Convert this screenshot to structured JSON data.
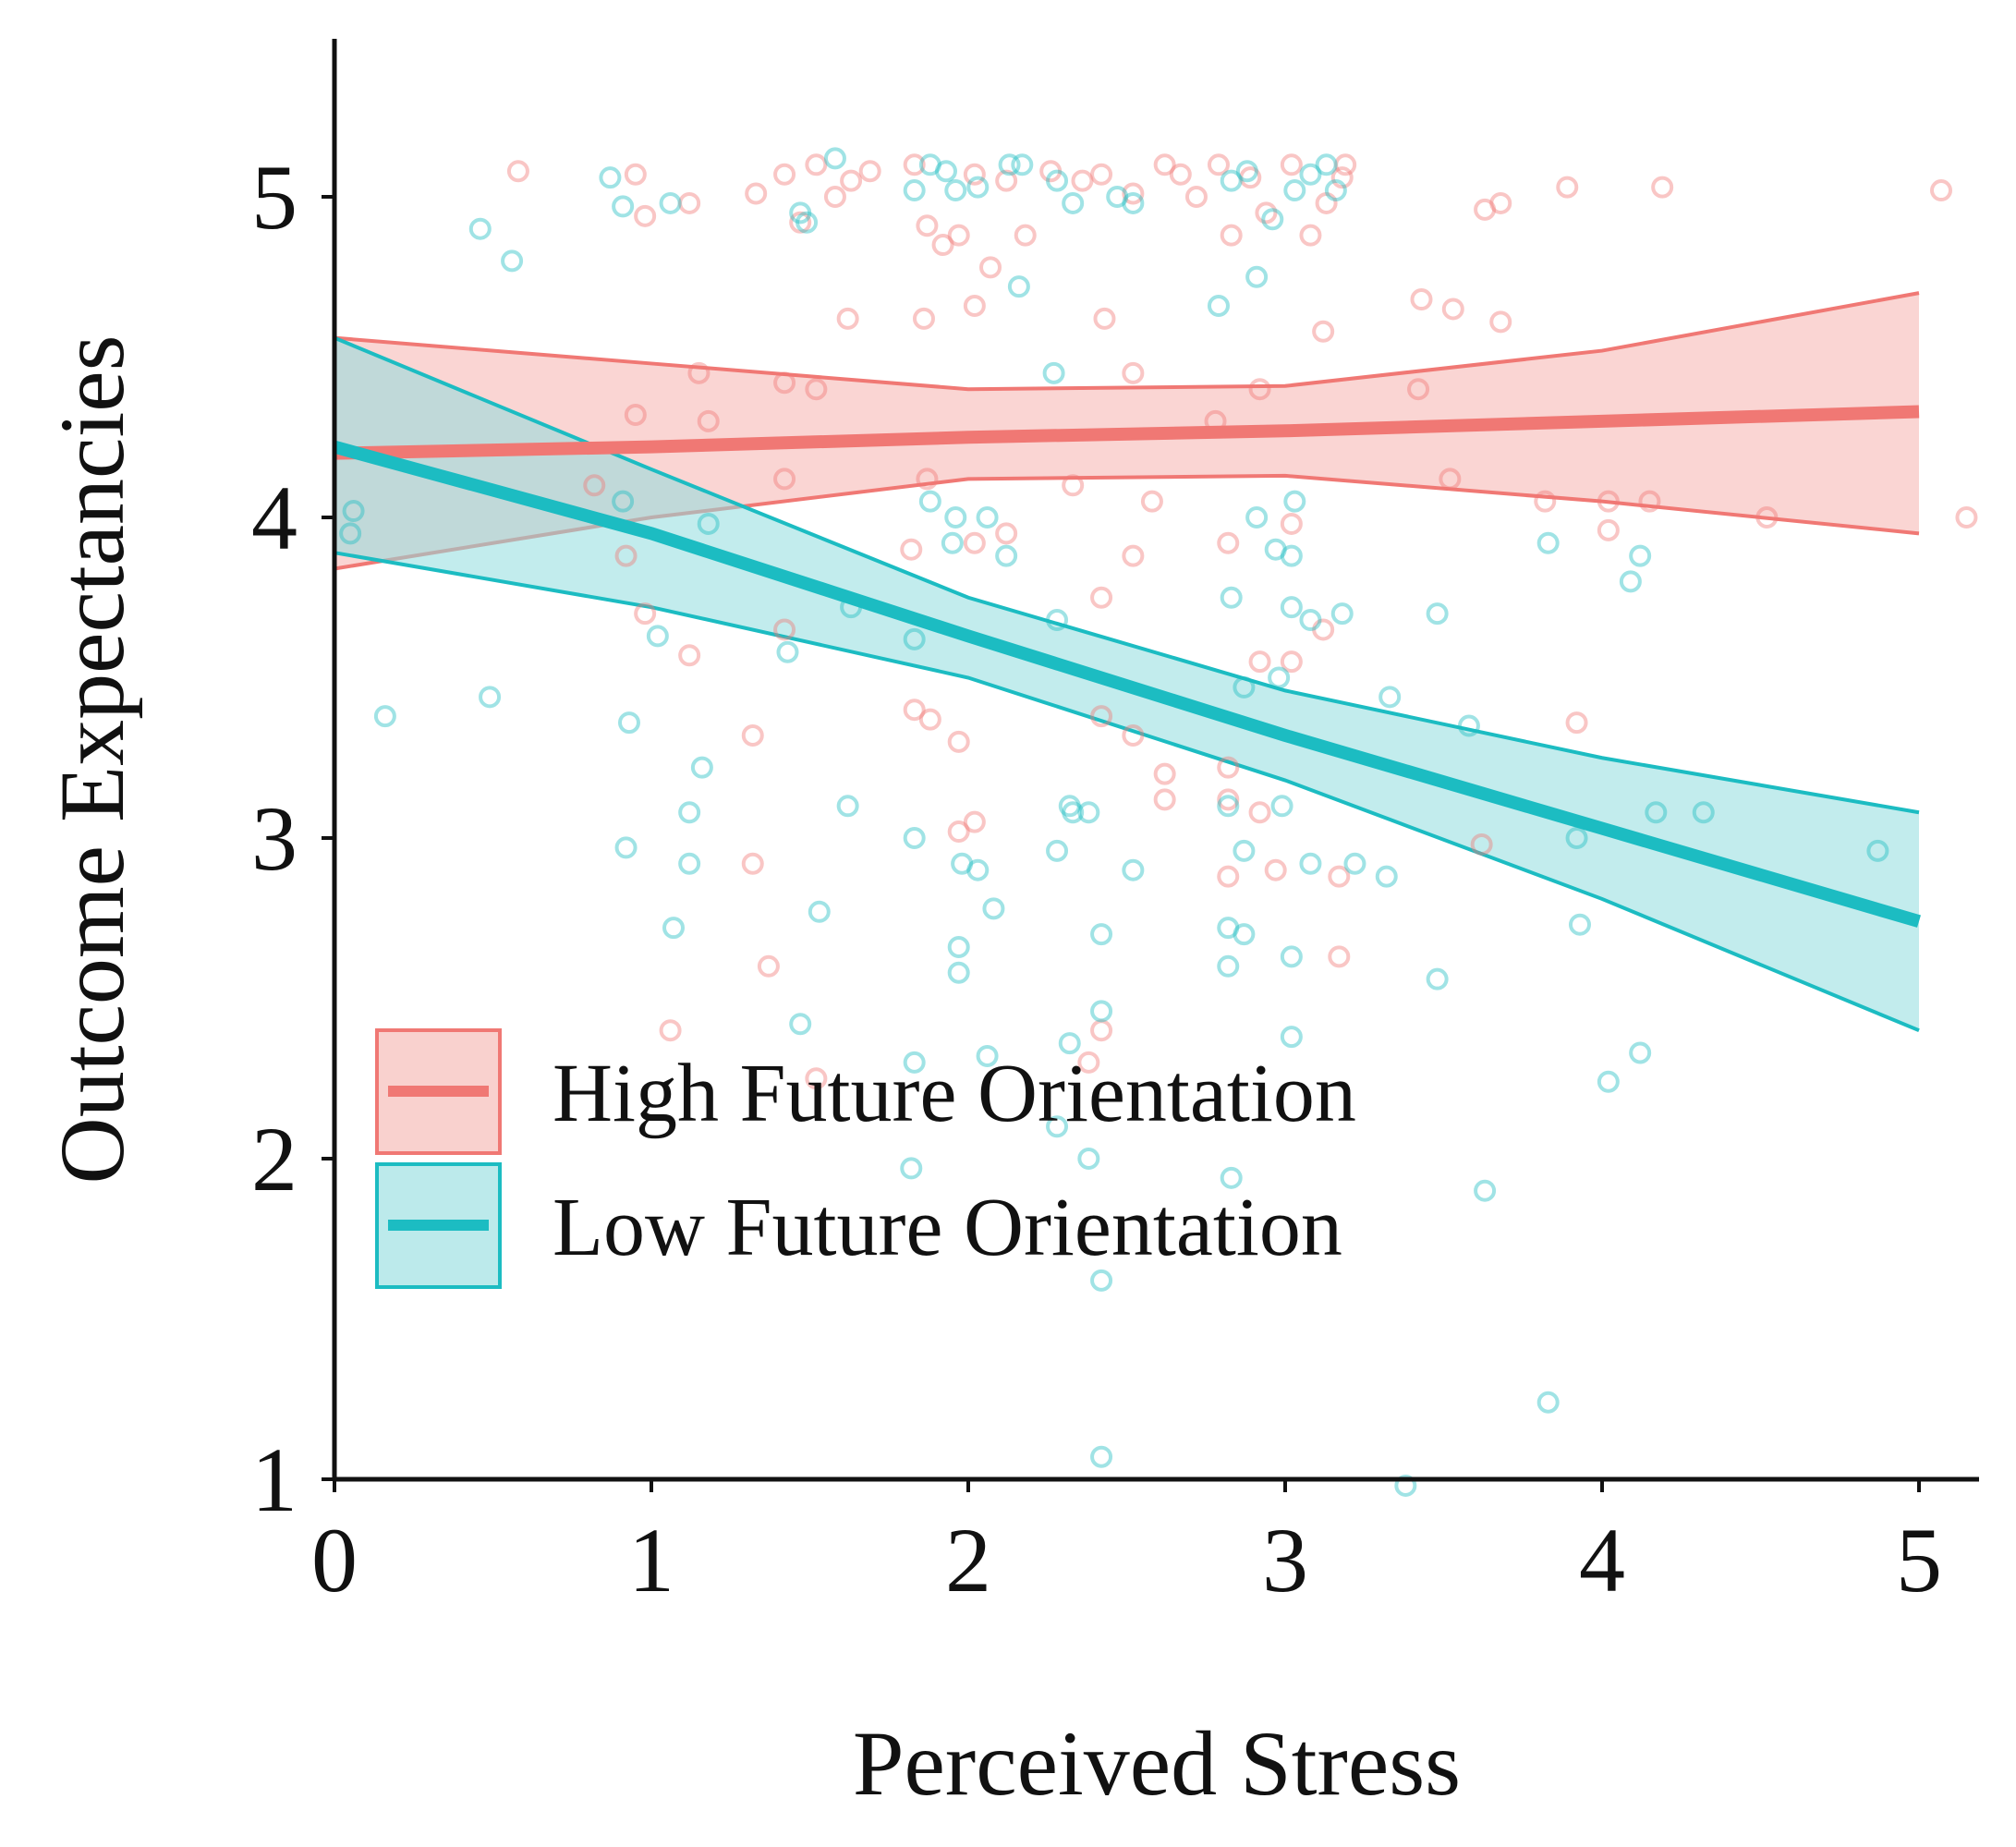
{
  "chart_data": {
    "type": "scatter",
    "title": "",
    "xlabel": "Perceived Stress",
    "ylabel": "Outcome Expectancies",
    "xlim": [
      0,
      5.2
    ],
    "ylim": [
      1,
      5.5
    ],
    "xticks": [
      0,
      1,
      2,
      3,
      4,
      5
    ],
    "yticks": [
      1,
      2,
      3,
      4,
      5
    ],
    "xtick_labels": [
      "0",
      "1",
      "2",
      "3",
      "4",
      "5"
    ],
    "ytick_labels": [
      "1",
      "2",
      "3",
      "4",
      "5"
    ],
    "grid": false,
    "legend_position": "bottom-left",
    "series": [
      {
        "name": "High Future Orientation",
        "color": "#f07874",
        "fill": "#f5b2ae",
        "fit": {
          "x": [
            0,
            1,
            2,
            3,
            4,
            5
          ],
          "y": [
            4.2,
            4.22,
            4.25,
            4.27,
            4.3,
            4.33
          ]
        },
        "ci_upper": {
          "x": [
            0,
            1,
            2,
            3,
            4,
            5
          ],
          "y": [
            4.56,
            4.48,
            4.4,
            4.41,
            4.52,
            4.7
          ]
        },
        "ci_lower": {
          "x": [
            0,
            1,
            2,
            3,
            4,
            5
          ],
          "y": [
            3.84,
            4.0,
            4.12,
            4.13,
            4.05,
            3.95
          ]
        },
        "points": [
          [
            0.58,
            5.08
          ],
          [
            0.95,
            5.07
          ],
          [
            0.98,
            4.94
          ],
          [
            1.12,
            4.98
          ],
          [
            1.33,
            5.01
          ],
          [
            1.42,
            5.07
          ],
          [
            1.47,
            4.92
          ],
          [
            1.52,
            5.1
          ],
          [
            1.58,
            5.0
          ],
          [
            1.63,
            5.05
          ],
          [
            1.69,
            5.08
          ],
          [
            1.83,
            5.1
          ],
          [
            1.87,
            4.91
          ],
          [
            1.92,
            4.85
          ],
          [
            1.97,
            4.88
          ],
          [
            2.02,
            5.07
          ],
          [
            2.07,
            4.78
          ],
          [
            2.12,
            5.05
          ],
          [
            2.18,
            4.88
          ],
          [
            2.26,
            5.08
          ],
          [
            2.36,
            5.05
          ],
          [
            2.42,
            5.07
          ],
          [
            2.52,
            5.01
          ],
          [
            2.62,
            5.1
          ],
          [
            2.67,
            5.07
          ],
          [
            2.72,
            5.0
          ],
          [
            2.79,
            5.1
          ],
          [
            2.83,
            4.88
          ],
          [
            2.89,
            5.06
          ],
          [
            2.94,
            4.95
          ],
          [
            3.02,
            5.1
          ],
          [
            3.08,
            4.88
          ],
          [
            3.13,
            4.98
          ],
          [
            3.18,
            5.06
          ],
          [
            3.19,
            5.1
          ],
          [
            3.63,
            4.96
          ],
          [
            3.68,
            4.98
          ],
          [
            3.89,
            5.03
          ],
          [
            4.19,
            5.03
          ],
          [
            5.07,
            5.02
          ],
          [
            1.62,
            4.62
          ],
          [
            1.86,
            4.62
          ],
          [
            2.02,
            4.66
          ],
          [
            2.43,
            4.62
          ],
          [
            3.12,
            4.58
          ],
          [
            3.43,
            4.68
          ],
          [
            3.53,
            4.65
          ],
          [
            3.68,
            4.61
          ],
          [
            1.15,
            4.45
          ],
          [
            1.42,
            4.42
          ],
          [
            1.52,
            4.4
          ],
          [
            2.52,
            4.45
          ],
          [
            2.92,
            4.4
          ],
          [
            3.42,
            4.4
          ],
          [
            0.95,
            4.32
          ],
          [
            1.18,
            4.3
          ],
          [
            2.78,
            4.3
          ],
          [
            0.82,
            4.1
          ],
          [
            1.42,
            4.12
          ],
          [
            1.87,
            4.12
          ],
          [
            2.33,
            4.1
          ],
          [
            2.58,
            4.05
          ],
          [
            3.52,
            4.12
          ],
          [
            3.82,
            4.05
          ],
          [
            4.02,
            4.05
          ],
          [
            4.15,
            4.05
          ],
          [
            5.15,
            4.0
          ],
          [
            0.92,
            3.88
          ],
          [
            1.82,
            3.9
          ],
          [
            2.02,
            3.92
          ],
          [
            2.12,
            3.95
          ],
          [
            2.52,
            3.88
          ],
          [
            2.82,
            3.92
          ],
          [
            3.02,
            3.98
          ],
          [
            4.02,
            3.96
          ],
          [
            4.52,
            4.0
          ],
          [
            0.98,
            3.7
          ],
          [
            1.42,
            3.65
          ],
          [
            2.42,
            3.75
          ],
          [
            3.12,
            3.65
          ],
          [
            1.12,
            3.57
          ],
          [
            2.92,
            3.55
          ],
          [
            3.02,
            3.55
          ],
          [
            1.83,
            3.4
          ],
          [
            1.88,
            3.37
          ],
          [
            1.97,
            3.3
          ],
          [
            2.42,
            3.38
          ],
          [
            2.52,
            3.32
          ],
          [
            2.62,
            3.2
          ],
          [
            2.82,
            3.22
          ],
          [
            3.92,
            3.36
          ],
          [
            1.32,
            3.32
          ],
          [
            2.02,
            3.05
          ],
          [
            2.62,
            3.12
          ],
          [
            2.82,
            3.12
          ],
          [
            2.92,
            3.08
          ],
          [
            3.62,
            2.98
          ],
          [
            1.97,
            3.02
          ],
          [
            1.32,
            2.92
          ],
          [
            2.82,
            2.88
          ],
          [
            2.97,
            2.9
          ],
          [
            3.17,
            2.88
          ],
          [
            1.37,
            2.6
          ],
          [
            3.17,
            2.63
          ],
          [
            1.06,
            2.4
          ],
          [
            2.42,
            2.4
          ],
          [
            2.38,
            2.3
          ],
          [
            1.52,
            2.25
          ]
        ]
      },
      {
        "name": "Low Future Orientation",
        "color": "#1cbcc2",
        "fill": "#8fdcde",
        "fit": {
          "x": [
            0,
            1,
            2,
            3,
            4,
            5
          ],
          "y": [
            4.22,
            3.95,
            3.63,
            3.32,
            3.03,
            2.74
          ]
        },
        "ci_upper": {
          "x": [
            0,
            1,
            2,
            3,
            4,
            5
          ],
          "y": [
            4.56,
            4.15,
            3.75,
            3.46,
            3.25,
            3.08
          ]
        },
        "ci_lower": {
          "x": [
            0,
            1,
            2,
            3,
            4,
            5
          ],
          "y": [
            3.89,
            3.72,
            3.5,
            3.18,
            2.81,
            2.4
          ]
        },
        "points": [
          [
            0.87,
            5.06
          ],
          [
            0.91,
            4.97
          ],
          [
            1.06,
            4.98
          ],
          [
            1.47,
            4.95
          ],
          [
            1.49,
            4.92
          ],
          [
            1.58,
            5.12
          ],
          [
            1.83,
            5.02
          ],
          [
            1.88,
            5.1
          ],
          [
            1.93,
            5.08
          ],
          [
            1.96,
            5.02
          ],
          [
            2.03,
            5.03
          ],
          [
            2.13,
            5.1
          ],
          [
            2.17,
            5.1
          ],
          [
            2.28,
            5.05
          ],
          [
            2.33,
            4.98
          ],
          [
            2.47,
            5.0
          ],
          [
            2.52,
            4.98
          ],
          [
            2.83,
            5.05
          ],
          [
            2.88,
            5.08
          ],
          [
            2.96,
            4.93
          ],
          [
            3.03,
            5.02
          ],
          [
            3.08,
            5.07
          ],
          [
            3.13,
            5.1
          ],
          [
            3.16,
            5.02
          ],
          [
            0.46,
            4.9
          ],
          [
            0.56,
            4.8
          ],
          [
            2.16,
            4.72
          ],
          [
            2.79,
            4.66
          ],
          [
            2.91,
            4.75
          ],
          [
            2.27,
            4.45
          ],
          [
            0.91,
            4.05
          ],
          [
            1.88,
            4.05
          ],
          [
            1.96,
            4.0
          ],
          [
            2.06,
            4.0
          ],
          [
            2.91,
            4.0
          ],
          [
            3.03,
            4.05
          ],
          [
            0.06,
            4.02
          ],
          [
            0.05,
            3.95
          ],
          [
            1.18,
            3.98
          ],
          [
            1.95,
            3.92
          ],
          [
            2.12,
            3.88
          ],
          [
            2.97,
            3.9
          ],
          [
            3.02,
            3.88
          ],
          [
            3.83,
            3.92
          ],
          [
            4.12,
            3.88
          ],
          [
            1.02,
            3.63
          ],
          [
            1.63,
            3.72
          ],
          [
            1.83,
            3.62
          ],
          [
            2.28,
            3.68
          ],
          [
            2.83,
            3.75
          ],
          [
            3.02,
            3.72
          ],
          [
            3.08,
            3.68
          ],
          [
            3.18,
            3.7
          ],
          [
            3.48,
            3.7
          ],
          [
            4.09,
            3.8
          ],
          [
            1.43,
            3.58
          ],
          [
            2.87,
            3.47
          ],
          [
            2.98,
            3.5
          ],
          [
            3.33,
            3.44
          ],
          [
            0.16,
            3.38
          ],
          [
            0.49,
            3.44
          ],
          [
            0.93,
            3.36
          ],
          [
            3.58,
            3.35
          ],
          [
            2.32,
            3.1
          ],
          [
            2.38,
            3.08
          ],
          [
            2.33,
            3.08
          ],
          [
            2.82,
            3.1
          ],
          [
            2.99,
            3.1
          ],
          [
            1.12,
            3.08
          ],
          [
            1.16,
            3.22
          ],
          [
            1.62,
            3.1
          ],
          [
            4.17,
            3.08
          ],
          [
            4.32,
            3.08
          ],
          [
            0.92,
            2.97
          ],
          [
            1.12,
            2.92
          ],
          [
            1.83,
            3.0
          ],
          [
            1.98,
            2.92
          ],
          [
            2.03,
            2.9
          ],
          [
            2.28,
            2.96
          ],
          [
            2.52,
            2.9
          ],
          [
            2.87,
            2.96
          ],
          [
            3.08,
            2.92
          ],
          [
            3.22,
            2.92
          ],
          [
            3.32,
            2.88
          ],
          [
            3.92,
            3.0
          ],
          [
            4.87,
            2.96
          ],
          [
            1.07,
            2.72
          ],
          [
            1.53,
            2.77
          ],
          [
            2.08,
            2.78
          ],
          [
            2.42,
            2.7
          ],
          [
            2.82,
            2.72
          ],
          [
            2.87,
            2.7
          ],
          [
            3.02,
            2.63
          ],
          [
            3.93,
            2.73
          ],
          [
            1.97,
            2.66
          ],
          [
            1.97,
            2.58
          ],
          [
            2.82,
            2.6
          ],
          [
            3.48,
            2.56
          ],
          [
            1.47,
            2.42
          ],
          [
            2.32,
            2.36
          ],
          [
            2.42,
            2.46
          ],
          [
            3.02,
            2.38
          ],
          [
            2.06,
            2.32
          ],
          [
            1.83,
            2.3
          ],
          [
            4.02,
            2.24
          ],
          [
            4.12,
            2.33
          ],
          [
            2.28,
            2.1
          ],
          [
            1.82,
            1.97
          ],
          [
            2.38,
            2.0
          ],
          [
            2.83,
            1.94
          ],
          [
            3.63,
            1.9
          ],
          [
            2.42,
            1.62
          ],
          [
            3.83,
            1.24
          ],
          [
            2.42,
            1.07
          ],
          [
            3.38,
            0.98
          ]
        ]
      }
    ]
  }
}
